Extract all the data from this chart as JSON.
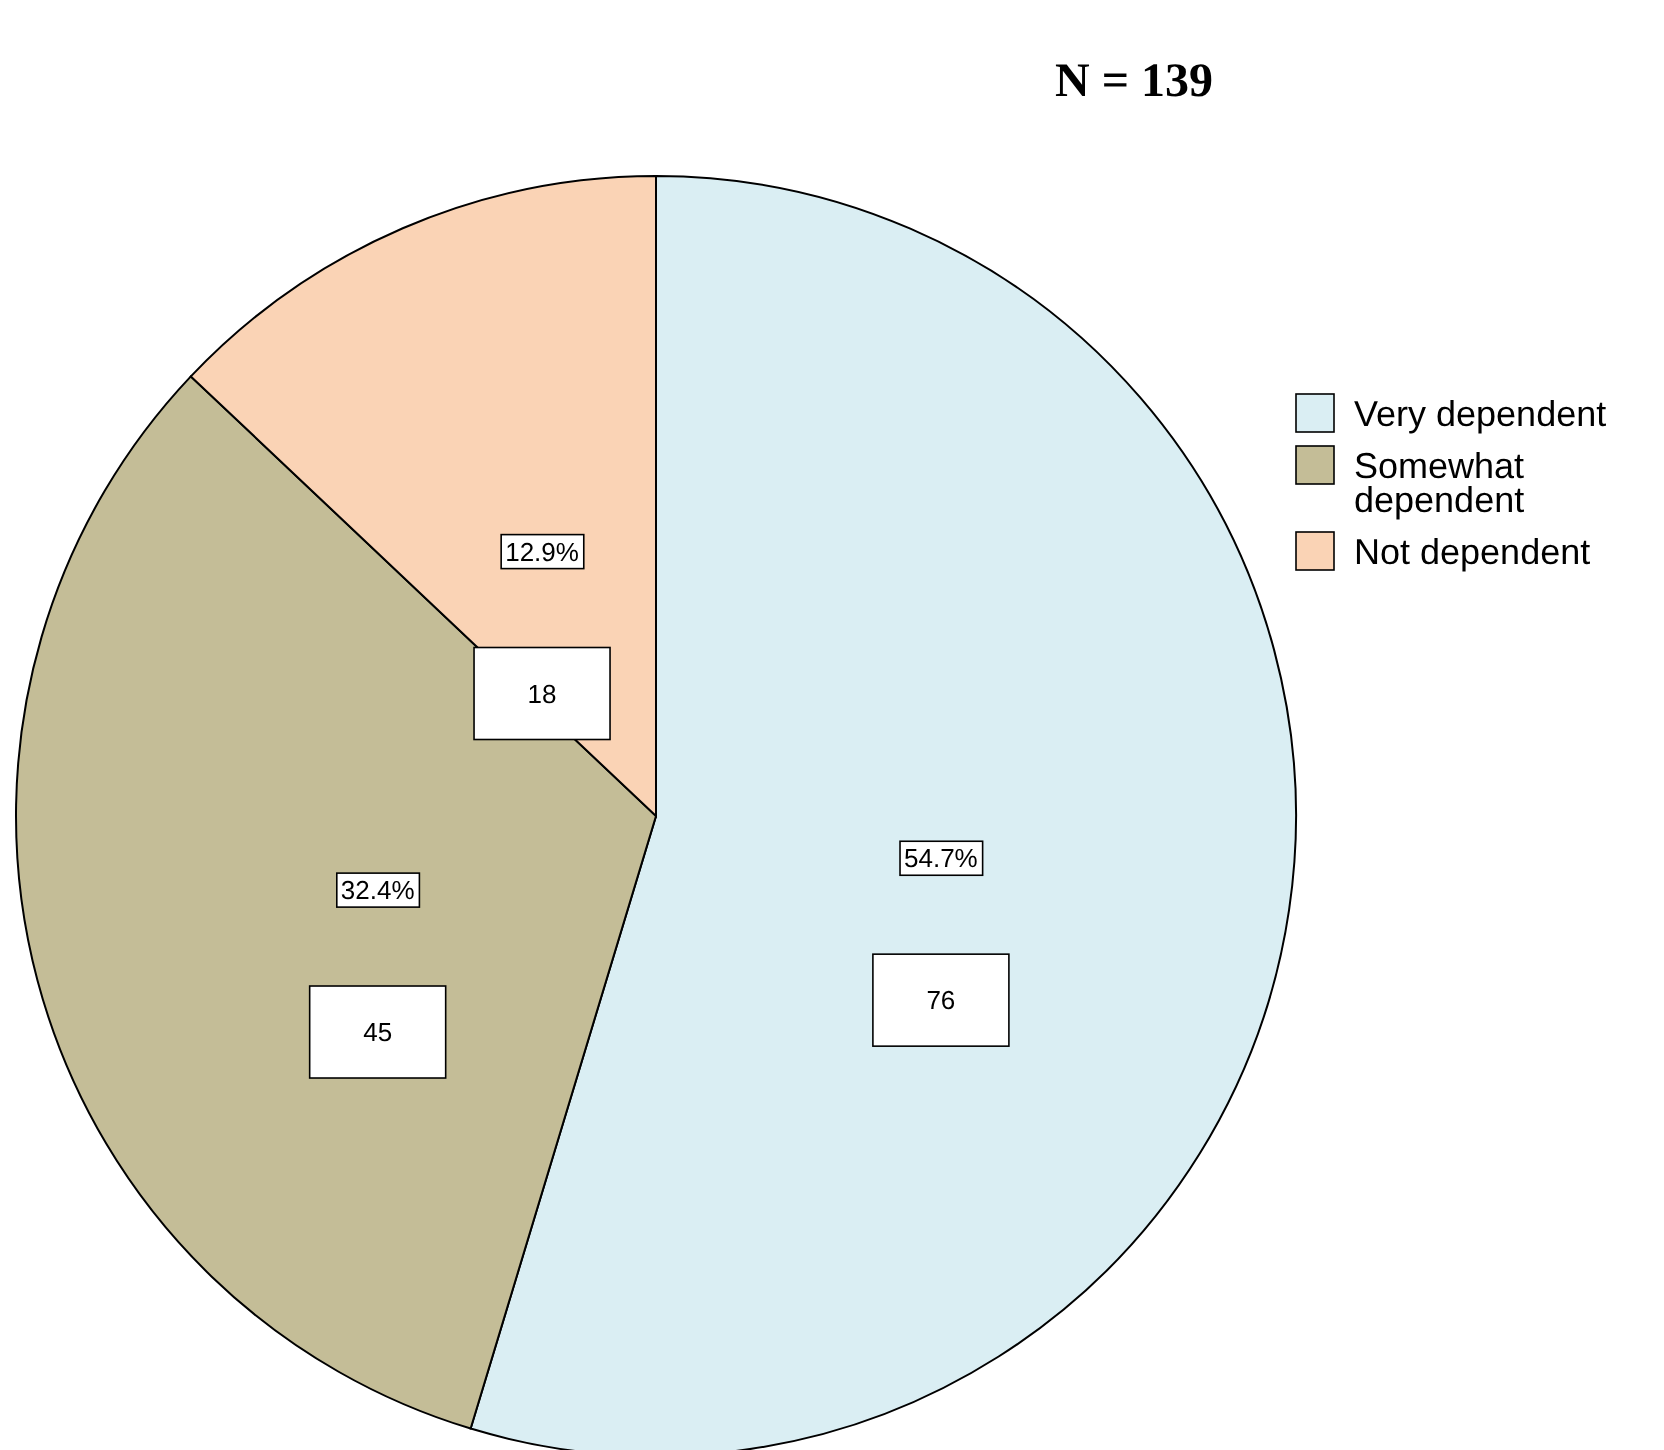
{
  "chart_data": {
    "type": "pie",
    "title": "N = 139",
    "categories": [
      "Very dependent",
      "Somewhat dependent",
      "Not dependent"
    ],
    "values": [
      76,
      45,
      18
    ],
    "colors": [
      "#daeef3",
      "#c4bd97",
      "#fad3b5"
    ],
    "data_labels": true,
    "annotations": [
      "54.7%",
      "32.4%",
      "12.9%"
    ],
    "legend": "right"
  }
}
